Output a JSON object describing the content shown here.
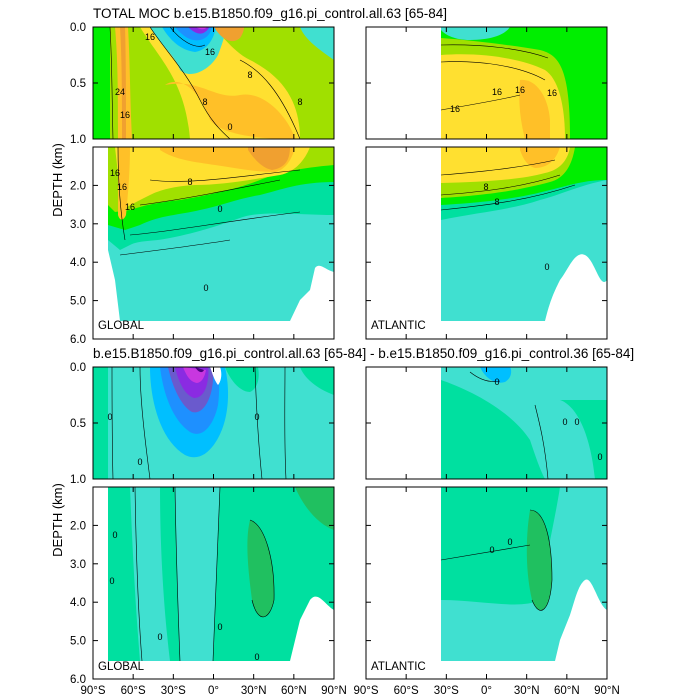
{
  "figure": {
    "top_title": "TOTAL MOC b.e15.B1850.f09_g16.pi_control.all.63 [65-84]",
    "bottom_title": "b.e15.B1850.f09_g16.pi_control.all.63 [65-84] - b.e15.B1850.f09_g16.pi_control.36 [65-84]",
    "y_axis_label": "DEPTH (km)",
    "region_labels": {
      "global": "GLOBAL",
      "atlantic": "ATLANTIC"
    }
  },
  "colors": {
    "ocean_levels": [
      "#000000",
      "#4b0082",
      "#8a2be2",
      "#c837e0",
      "#6a5acd",
      "#4169e1",
      "#1e90ff",
      "#00bfff",
      "#40e0d0",
      "#00e0a0",
      "#20c060",
      "#00ee00",
      "#a0e000",
      "#ffe030",
      "#ffc028",
      "#f0a030"
    ]
  },
  "chart_data": [
    {
      "type": "contour",
      "panel": "total-global",
      "x_axis": {
        "range": [
          -90,
          90
        ],
        "ticks": [
          -90,
          -60,
          -30,
          0,
          30,
          60,
          90
        ],
        "tick_labels": [
          "90°S",
          "60°S",
          "30°S",
          "0°",
          "30°N",
          "60°N",
          "90°N"
        ]
      },
      "y_axis": {
        "upper_range": [
          0.0,
          1.0
        ],
        "lower_range": [
          1.0,
          6.0
        ],
        "upper_tick_labels": [
          "0.0",
          "0.5",
          "1.0"
        ],
        "lower_tick_labels": [
          "2.0",
          "3.0",
          "4.0",
          "5.0",
          "6.0"
        ]
      },
      "contour_labels": [
        "16",
        "24",
        "16",
        "8",
        "0",
        "16",
        "8",
        "8",
        "16",
        "8",
        "0",
        "16",
        "16",
        "0"
      ]
    },
    {
      "type": "contour",
      "panel": "total-atlantic",
      "x_axis": {
        "range": [
          -90,
          90
        ]
      },
      "contour_labels": [
        "16",
        "16",
        "16",
        "16",
        "8",
        "8",
        "0"
      ]
    },
    {
      "type": "contour",
      "panel": "difference-global",
      "x_axis": {
        "range": [
          -90,
          90
        ],
        "ticks": [
          -90,
          -60,
          -30,
          0,
          30,
          60,
          90
        ],
        "tick_labels": [
          "90°S",
          "60°S",
          "30°S",
          "0°",
          "30°N",
          "60°N",
          "90°N"
        ]
      },
      "y_axis": {
        "upper_tick_labels": [
          "0.0",
          "0.5",
          "1.0"
        ],
        "lower_tick_labels": [
          "2.0",
          "3.0",
          "4.0",
          "5.0",
          "6.0"
        ]
      },
      "contour_labels": [
        "0",
        "0",
        "0",
        "0",
        "0",
        "0",
        "0",
        "0"
      ]
    },
    {
      "type": "contour",
      "panel": "difference-atlantic",
      "x_axis": {
        "range": [
          -90,
          90
        ],
        "ticks": [
          -90,
          -60,
          -30,
          0,
          30,
          60,
          90
        ],
        "tick_labels": [
          "90°S",
          "60°S",
          "30°S",
          "0°",
          "30°N",
          "60°N",
          "90°N"
        ]
      },
      "contour_labels": [
        "0",
        "0",
        "0",
        "0",
        "0",
        "0"
      ]
    }
  ]
}
